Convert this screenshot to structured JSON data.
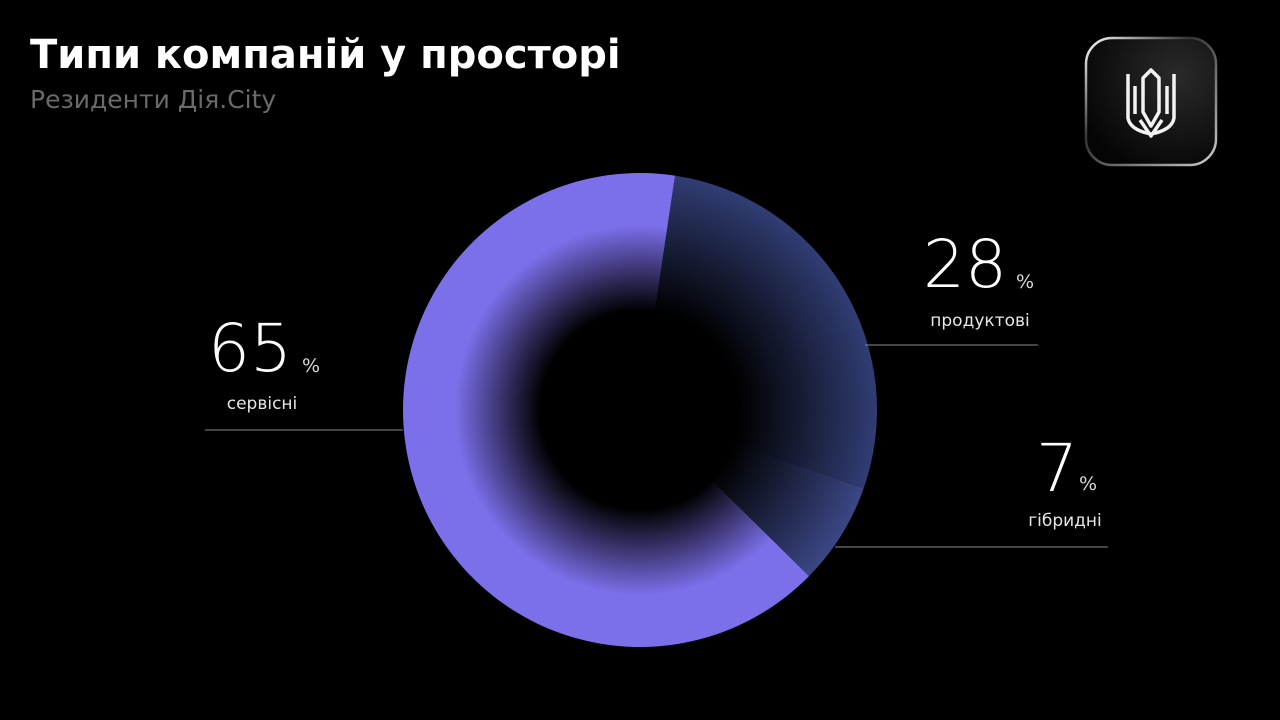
{
  "chart_data": {
    "type": "pie",
    "title": "Типи компаній у просторі",
    "subtitle": "Резиденти Дія.City",
    "categories": [
      "продуктові",
      "гібридні",
      "сервісні"
    ],
    "values": [
      28,
      7,
      65
    ],
    "colors": [
      "#313d74",
      "#3b4785",
      "#7b6fea"
    ],
    "unit": "%"
  }
}
